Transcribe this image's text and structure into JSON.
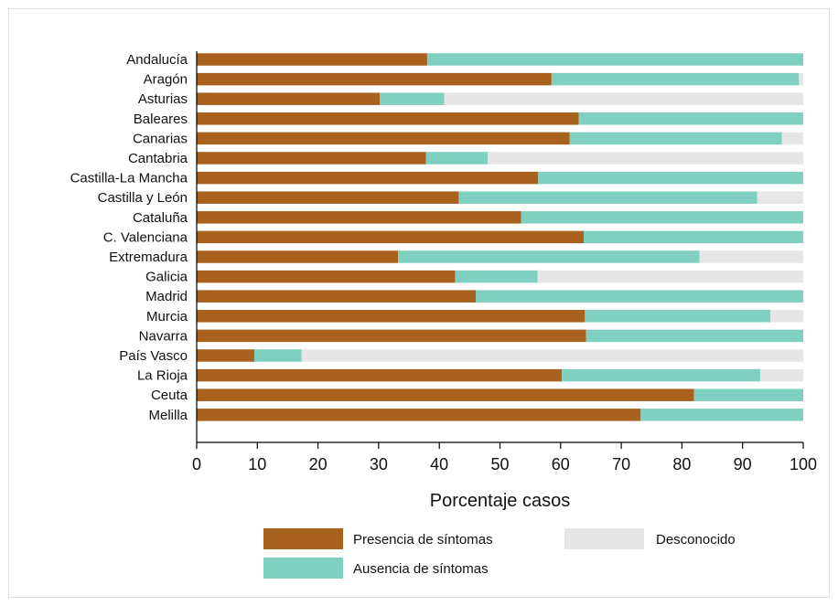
{
  "chart_data": {
    "type": "bar",
    "orientation": "horizontal",
    "stacked": true,
    "categories": [
      "Andalucía",
      "Aragón",
      "Asturias",
      "Baleares",
      "Canarias",
      "Cantabria",
      "Castilla-La Mancha",
      "Castilla y León",
      "Cataluña",
      "C. Valenciana",
      "Extremadura",
      "Galicia",
      "Madrid",
      "Murcia",
      "Navarra",
      "País Vasco",
      "La Rioja",
      "Ceuta",
      "Melilla"
    ],
    "series": [
      {
        "name": "Presencia de síntomas",
        "color": "#a8621d",
        "values": [
          38,
          58.5,
          30.2,
          63,
          61.5,
          37.8,
          56.3,
          43.2,
          53.5,
          63.8,
          33.2,
          42.6,
          46,
          64,
          64.2,
          9.5,
          60.2,
          82,
          73.2
        ]
      },
      {
        "name": "Ausencia de síntomas",
        "color": "#7fd0c0",
        "values": [
          62,
          40.8,
          10.6,
          37,
          35,
          10.2,
          43.7,
          49.2,
          46.5,
          36.2,
          49.7,
          13.6,
          54,
          30.6,
          35.8,
          7.8,
          32.7,
          18,
          26.8
        ]
      },
      {
        "name": "Desconocido",
        "color": "#e6e6e6",
        "values": [
          0,
          0.7,
          59.2,
          0,
          3.5,
          52,
          0,
          7.6,
          0,
          0,
          17.1,
          43.8,
          0,
          5.4,
          0,
          82.7,
          7.1,
          0,
          0
        ]
      }
    ],
    "xlabel": "Porcentaje casos",
    "ylabel": "",
    "xlim": [
      0,
      100
    ],
    "xticks": [
      "0",
      "10",
      "20",
      "30",
      "40",
      "50",
      "60",
      "70",
      "80",
      "90",
      "100"
    ],
    "legend_position": "bottom"
  }
}
